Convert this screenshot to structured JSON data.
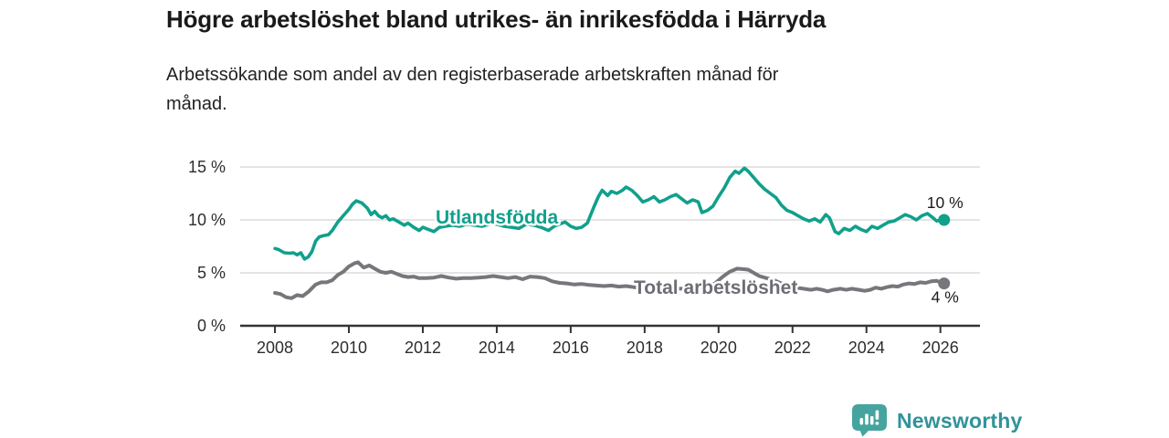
{
  "header": {
    "title": "Högre arbetslöshet bland utrikes- än inrikesfödda i Härryda",
    "subtitle": "Arbetssökande som andel av den registerbaserade arbetskraften månad för\nmånad."
  },
  "footer": {
    "brand": "Newsworthy"
  },
  "colors": {
    "series_foreign": "#10a08c",
    "series_total": "#77767b",
    "grid": "#dcdcdc",
    "axis": "#333333",
    "tick_text": "#2d2d2d",
    "end_label_text": "#1a1a1a",
    "total_label_text": "#6e6d73",
    "logo_bubble": "#45a49e",
    "logo_text": "#2f9499"
  },
  "chart_data": {
    "type": "line",
    "title": "Högre arbetslöshet bland utrikes- än inrikesfödda i Härryda",
    "subtitle": "Arbetssökande som andel av den registerbaserade arbetskraften månad för månad.",
    "xlabel": "",
    "ylabel": "",
    "grid": true,
    "xlim": [
      2007.06,
      2027.07
    ],
    "ylim": [
      0,
      15
    ],
    "xticks": [
      {
        "value": 2008,
        "label": "2008"
      },
      {
        "value": 2010,
        "label": "2010"
      },
      {
        "value": 2012,
        "label": "2012"
      },
      {
        "value": 2014,
        "label": "2014"
      },
      {
        "value": 2016,
        "label": "2016"
      },
      {
        "value": 2018,
        "label": "2018"
      },
      {
        "value": 2020,
        "label": "2020"
      },
      {
        "value": 2022,
        "label": "2022"
      },
      {
        "value": 2024,
        "label": "2024"
      },
      {
        "value": 2026,
        "label": "2026"
      }
    ],
    "yticks": [
      {
        "value": 0,
        "label": "0 %"
      },
      {
        "value": 5,
        "label": "5 %"
      },
      {
        "value": 10,
        "label": "10 %"
      },
      {
        "value": 15,
        "label": "15 %"
      }
    ],
    "series": [
      {
        "name": "Utlandsfödda",
        "color": "#10a08c",
        "line_width": 3.6,
        "end_label": "10 %",
        "end_value": 10.0,
        "points": [
          [
            2008.0,
            7.3
          ],
          [
            2008.1,
            7.2
          ],
          [
            2008.25,
            6.9
          ],
          [
            2008.4,
            6.85
          ],
          [
            2008.5,
            6.9
          ],
          [
            2008.6,
            6.7
          ],
          [
            2008.7,
            6.9
          ],
          [
            2008.8,
            6.3
          ],
          [
            2008.9,
            6.5
          ],
          [
            2009.0,
            7.0
          ],
          [
            2009.1,
            8.0
          ],
          [
            2009.2,
            8.4
          ],
          [
            2009.3,
            8.5
          ],
          [
            2009.45,
            8.6
          ],
          [
            2009.55,
            9.0
          ],
          [
            2009.7,
            9.8
          ],
          [
            2009.8,
            10.2
          ],
          [
            2009.9,
            10.6
          ],
          [
            2010.0,
            11.0
          ],
          [
            2010.1,
            11.5
          ],
          [
            2010.2,
            11.8
          ],
          [
            2010.35,
            11.6
          ],
          [
            2010.5,
            11.1
          ],
          [
            2010.6,
            10.5
          ],
          [
            2010.7,
            10.8
          ],
          [
            2010.8,
            10.4
          ],
          [
            2010.9,
            10.2
          ],
          [
            2011.0,
            10.4
          ],
          [
            2011.1,
            10.0
          ],
          [
            2011.2,
            10.1
          ],
          [
            2011.35,
            9.8
          ],
          [
            2011.5,
            9.5
          ],
          [
            2011.6,
            9.7
          ],
          [
            2011.75,
            9.3
          ],
          [
            2011.9,
            9.0
          ],
          [
            2012.0,
            9.3
          ],
          [
            2012.15,
            9.1
          ],
          [
            2012.3,
            8.9
          ],
          [
            2012.45,
            9.3
          ],
          [
            2012.6,
            9.4
          ],
          [
            2012.8,
            9.5
          ],
          [
            2013.0,
            9.4
          ],
          [
            2013.2,
            9.6
          ],
          [
            2013.4,
            9.5
          ],
          [
            2013.6,
            9.4
          ],
          [
            2013.8,
            9.6
          ],
          [
            2014.0,
            9.6
          ],
          [
            2014.2,
            9.4
          ],
          [
            2014.4,
            9.3
          ],
          [
            2014.6,
            9.2
          ],
          [
            2014.8,
            9.6
          ],
          [
            2015.0,
            9.5
          ],
          [
            2015.2,
            9.3
          ],
          [
            2015.4,
            9.0
          ],
          [
            2015.55,
            9.4
          ],
          [
            2015.7,
            9.6
          ],
          [
            2015.85,
            9.8
          ],
          [
            2016.0,
            9.4
          ],
          [
            2016.15,
            9.2
          ],
          [
            2016.3,
            9.3
          ],
          [
            2016.45,
            9.7
          ],
          [
            2016.6,
            11.0
          ],
          [
            2016.75,
            12.2
          ],
          [
            2016.85,
            12.8
          ],
          [
            2017.0,
            12.3
          ],
          [
            2017.1,
            12.7
          ],
          [
            2017.25,
            12.5
          ],
          [
            2017.4,
            12.8
          ],
          [
            2017.5,
            13.1
          ],
          [
            2017.65,
            12.8
          ],
          [
            2017.8,
            12.3
          ],
          [
            2017.95,
            11.7
          ],
          [
            2018.1,
            11.9
          ],
          [
            2018.25,
            12.2
          ],
          [
            2018.4,
            11.7
          ],
          [
            2018.55,
            11.9
          ],
          [
            2018.7,
            12.2
          ],
          [
            2018.85,
            12.4
          ],
          [
            2019.0,
            12.0
          ],
          [
            2019.15,
            11.6
          ],
          [
            2019.3,
            11.9
          ],
          [
            2019.45,
            11.7
          ],
          [
            2019.55,
            10.7
          ],
          [
            2019.7,
            10.9
          ],
          [
            2019.85,
            11.3
          ],
          [
            2020.0,
            12.2
          ],
          [
            2020.15,
            13.0
          ],
          [
            2020.3,
            14.0
          ],
          [
            2020.45,
            14.6
          ],
          [
            2020.55,
            14.4
          ],
          [
            2020.7,
            14.9
          ],
          [
            2020.8,
            14.6
          ],
          [
            2020.95,
            14.0
          ],
          [
            2021.1,
            13.4
          ],
          [
            2021.25,
            12.9
          ],
          [
            2021.4,
            12.5
          ],
          [
            2021.55,
            12.1
          ],
          [
            2021.7,
            11.4
          ],
          [
            2021.85,
            10.9
          ],
          [
            2022.0,
            10.7
          ],
          [
            2022.15,
            10.4
          ],
          [
            2022.3,
            10.1
          ],
          [
            2022.45,
            9.9
          ],
          [
            2022.6,
            10.1
          ],
          [
            2022.75,
            9.8
          ],
          [
            2022.9,
            10.5
          ],
          [
            2023.0,
            10.2
          ],
          [
            2023.15,
            8.9
          ],
          [
            2023.25,
            8.7
          ],
          [
            2023.4,
            9.2
          ],
          [
            2023.55,
            9.0
          ],
          [
            2023.7,
            9.4
          ],
          [
            2023.85,
            9.1
          ],
          [
            2024.0,
            8.9
          ],
          [
            2024.15,
            9.4
          ],
          [
            2024.3,
            9.2
          ],
          [
            2024.45,
            9.5
          ],
          [
            2024.6,
            9.8
          ],
          [
            2024.75,
            9.9
          ],
          [
            2024.9,
            10.2
          ],
          [
            2025.05,
            10.5
          ],
          [
            2025.2,
            10.3
          ],
          [
            2025.35,
            10.0
          ],
          [
            2025.5,
            10.4
          ],
          [
            2025.65,
            10.6
          ],
          [
            2025.8,
            10.2
          ],
          [
            2025.9,
            9.9
          ],
          [
            2026.0,
            10.0
          ],
          [
            2026.1,
            10.0
          ]
        ]
      },
      {
        "name": "Total arbetslöshet",
        "color": "#77767b",
        "line_width": 4,
        "end_label": "4 %",
        "end_value": 4.0,
        "points": [
          [
            2008.0,
            3.1
          ],
          [
            2008.15,
            3.0
          ],
          [
            2008.3,
            2.7
          ],
          [
            2008.45,
            2.6
          ],
          [
            2008.6,
            2.9
          ],
          [
            2008.75,
            2.8
          ],
          [
            2008.9,
            3.2
          ],
          [
            2009.1,
            3.9
          ],
          [
            2009.25,
            4.1
          ],
          [
            2009.4,
            4.1
          ],
          [
            2009.55,
            4.3
          ],
          [
            2009.7,
            4.8
          ],
          [
            2009.85,
            5.1
          ],
          [
            2010.0,
            5.6
          ],
          [
            2010.15,
            5.9
          ],
          [
            2010.25,
            6.0
          ],
          [
            2010.4,
            5.5
          ],
          [
            2010.55,
            5.7
          ],
          [
            2010.7,
            5.4
          ],
          [
            2010.85,
            5.1
          ],
          [
            2011.0,
            5.0
          ],
          [
            2011.15,
            5.1
          ],
          [
            2011.3,
            4.9
          ],
          [
            2011.45,
            4.7
          ],
          [
            2011.6,
            4.6
          ],
          [
            2011.75,
            4.65
          ],
          [
            2011.9,
            4.5
          ],
          [
            2012.1,
            4.5
          ],
          [
            2012.3,
            4.55
          ],
          [
            2012.5,
            4.7
          ],
          [
            2012.7,
            4.55
          ],
          [
            2012.9,
            4.45
          ],
          [
            2013.1,
            4.5
          ],
          [
            2013.3,
            4.5
          ],
          [
            2013.5,
            4.55
          ],
          [
            2013.7,
            4.6
          ],
          [
            2013.9,
            4.7
          ],
          [
            2014.1,
            4.6
          ],
          [
            2014.3,
            4.5
          ],
          [
            2014.5,
            4.6
          ],
          [
            2014.7,
            4.4
          ],
          [
            2014.9,
            4.65
          ],
          [
            2015.1,
            4.6
          ],
          [
            2015.3,
            4.5
          ],
          [
            2015.5,
            4.2
          ],
          [
            2015.7,
            4.05
          ],
          [
            2015.9,
            4.0
          ],
          [
            2016.1,
            3.9
          ],
          [
            2016.3,
            3.95
          ],
          [
            2016.5,
            3.85
          ],
          [
            2016.7,
            3.8
          ],
          [
            2016.9,
            3.75
          ],
          [
            2017.1,
            3.8
          ],
          [
            2017.3,
            3.7
          ],
          [
            2017.5,
            3.75
          ],
          [
            2017.7,
            3.65
          ],
          [
            2017.9,
            3.55
          ],
          [
            2018.1,
            3.5
          ],
          [
            2018.3,
            3.6
          ],
          [
            2018.5,
            3.5
          ],
          [
            2018.7,
            3.45
          ],
          [
            2018.9,
            3.5
          ],
          [
            2019.1,
            3.5
          ],
          [
            2019.3,
            3.6
          ],
          [
            2019.5,
            3.65
          ],
          [
            2019.7,
            3.7
          ],
          [
            2019.9,
            4.0
          ],
          [
            2020.1,
            4.6
          ],
          [
            2020.3,
            5.1
          ],
          [
            2020.5,
            5.4
          ],
          [
            2020.65,
            5.35
          ],
          [
            2020.8,
            5.3
          ],
          [
            2020.95,
            5.0
          ],
          [
            2021.1,
            4.7
          ],
          [
            2021.3,
            4.5
          ],
          [
            2021.5,
            4.3
          ],
          [
            2021.7,
            4.0
          ],
          [
            2021.9,
            3.8
          ],
          [
            2022.1,
            3.6
          ],
          [
            2022.3,
            3.5
          ],
          [
            2022.5,
            3.4
          ],
          [
            2022.65,
            3.5
          ],
          [
            2022.8,
            3.4
          ],
          [
            2022.95,
            3.25
          ],
          [
            2023.1,
            3.4
          ],
          [
            2023.3,
            3.5
          ],
          [
            2023.45,
            3.4
          ],
          [
            2023.6,
            3.5
          ],
          [
            2023.8,
            3.4
          ],
          [
            2023.95,
            3.3
          ],
          [
            2024.1,
            3.4
          ],
          [
            2024.25,
            3.6
          ],
          [
            2024.4,
            3.5
          ],
          [
            2024.55,
            3.65
          ],
          [
            2024.7,
            3.75
          ],
          [
            2024.85,
            3.7
          ],
          [
            2025.0,
            3.9
          ],
          [
            2025.15,
            4.0
          ],
          [
            2025.3,
            3.95
          ],
          [
            2025.45,
            4.1
          ],
          [
            2025.6,
            4.05
          ],
          [
            2025.75,
            4.2
          ],
          [
            2025.9,
            4.25
          ],
          [
            2026.0,
            4.1
          ],
          [
            2026.1,
            4.0
          ]
        ]
      }
    ],
    "legend_position": "inline-labels"
  }
}
